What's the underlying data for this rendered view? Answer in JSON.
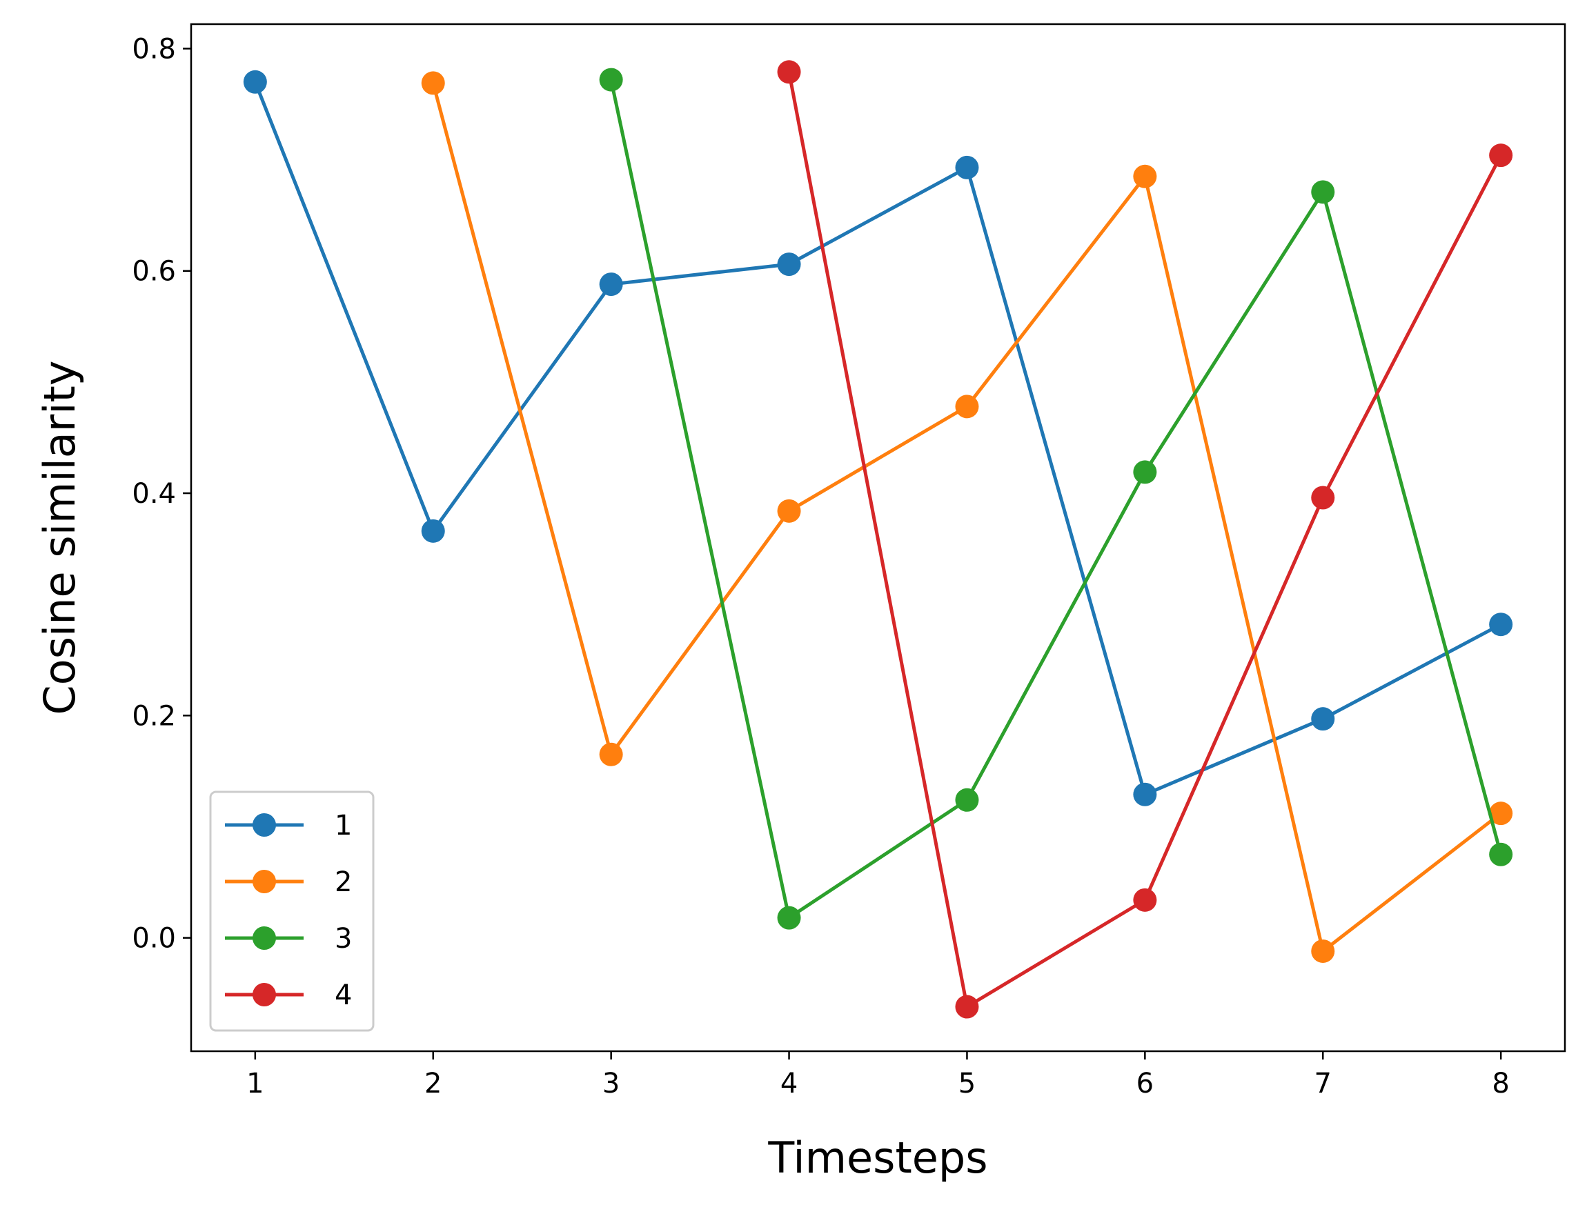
{
  "chart_data": {
    "type": "line",
    "title": "",
    "xlabel": "Timesteps",
    "ylabel": "Cosine similarity",
    "x_ticks": [
      "1",
      "2",
      "3",
      "4",
      "5",
      "6",
      "7",
      "8"
    ],
    "y_ticks": [
      "0.0",
      "0.2",
      "0.4",
      "0.6",
      "0.8"
    ],
    "xlim": [
      0.64,
      8.36
    ],
    "ylim": [
      -0.102,
      0.822
    ],
    "grid": false,
    "legend_position": "lower-left",
    "series": [
      {
        "name": "1",
        "color": "#1f77b4",
        "x": [
          1,
          2,
          3,
          4,
          5,
          6,
          7,
          8
        ],
        "y": [
          0.77,
          0.366,
          0.588,
          0.606,
          0.693,
          0.129,
          0.197,
          0.282
        ]
      },
      {
        "name": "2",
        "color": "#ff7f0e",
        "x": [
          2,
          3,
          4,
          5,
          6,
          7,
          8
        ],
        "y": [
          0.769,
          0.165,
          0.384,
          0.478,
          0.685,
          -0.012,
          0.112
        ]
      },
      {
        "name": "3",
        "color": "#2ca02c",
        "x": [
          3,
          4,
          5,
          6,
          7,
          8
        ],
        "y": [
          0.772,
          0.018,
          0.124,
          0.419,
          0.671,
          0.075
        ]
      },
      {
        "name": "4",
        "color": "#d62728",
        "x": [
          4,
          5,
          6,
          7,
          8
        ],
        "y": [
          0.779,
          -0.062,
          0.034,
          0.396,
          0.704
        ]
      }
    ]
  }
}
